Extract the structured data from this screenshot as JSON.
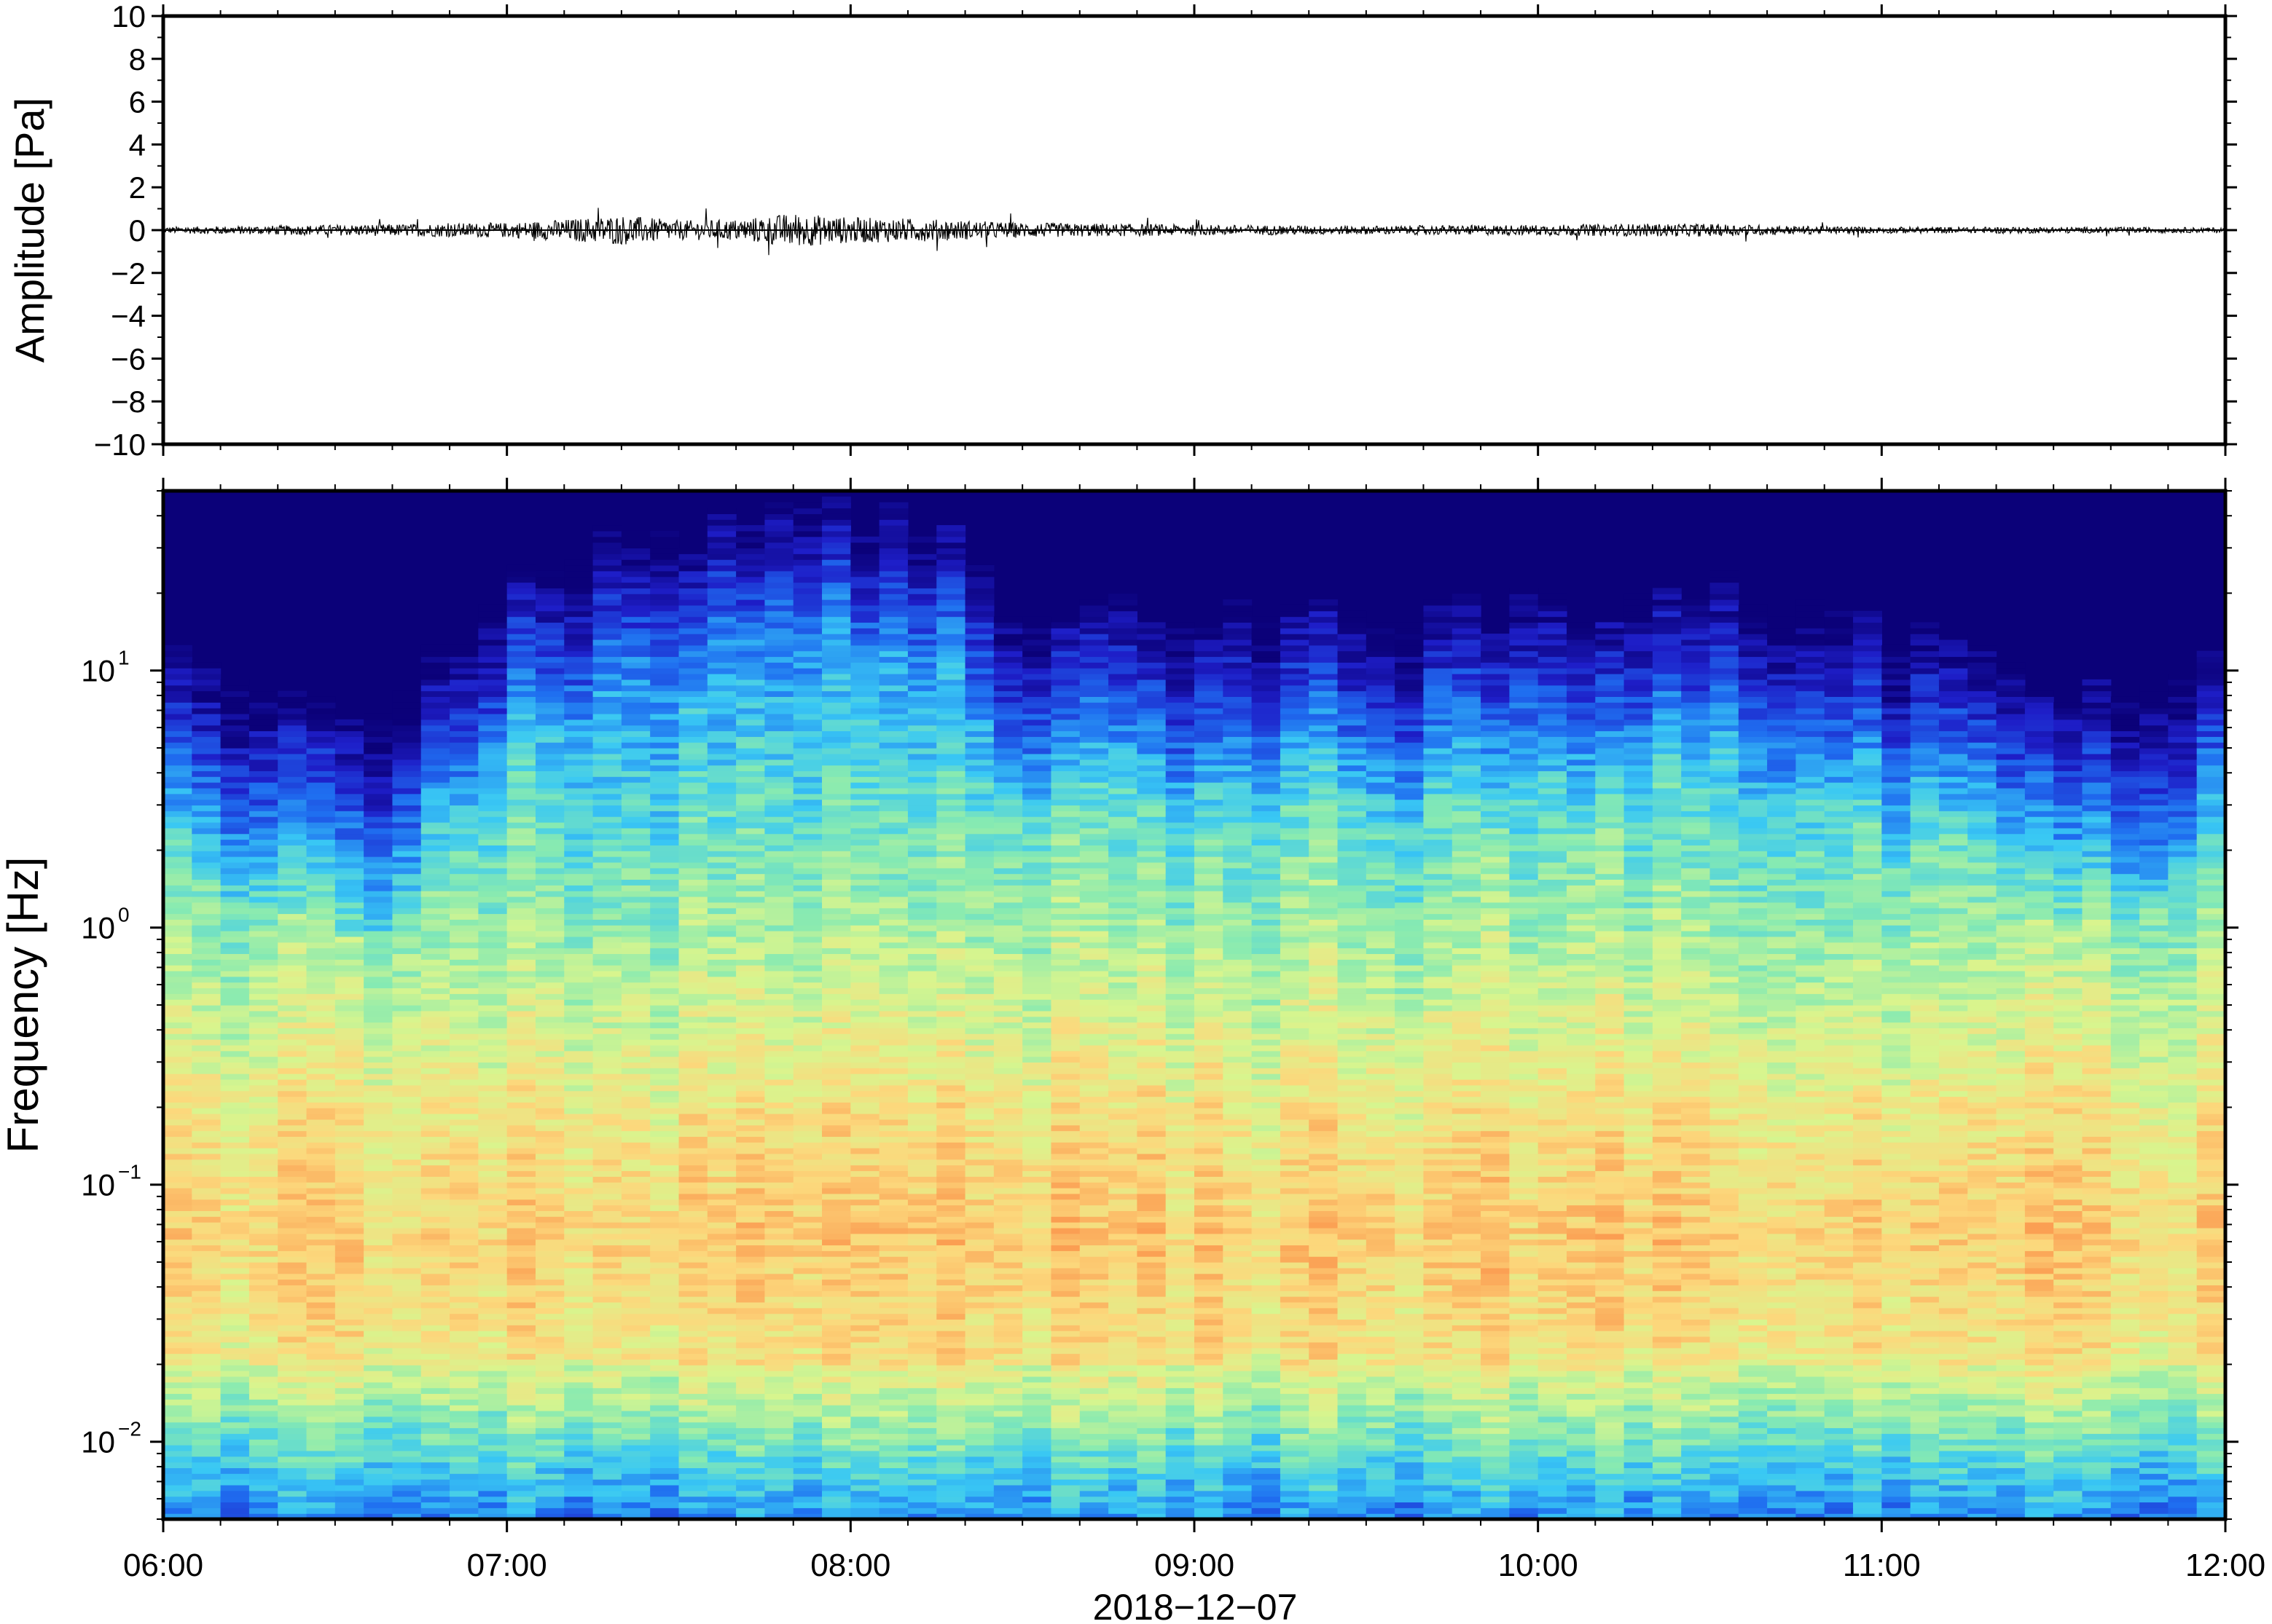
{
  "figure": {
    "date_label": "2018−12−07"
  },
  "chart_data": [
    {
      "type": "line",
      "name": "waveform",
      "ylabel": "Amplitude [Pa]",
      "xlabel": "",
      "xlim": [
        "06:00",
        "12:00"
      ],
      "ylim": [
        -10,
        10
      ],
      "yticks": [
        10,
        8,
        6,
        4,
        2,
        0,
        -2,
        -4,
        -6,
        -8,
        -10
      ],
      "ytick_labels": [
        "10",
        "8",
        "6",
        "4",
        "2",
        "0",
        "−2",
        "−4",
        "−6",
        "−8",
        "−10"
      ],
      "baseline": 0,
      "envelope": {
        "times": [
          "06:00",
          "06:15",
          "06:30",
          "06:45",
          "07:00",
          "07:10",
          "07:20",
          "07:30",
          "07:40",
          "07:50",
          "08:00",
          "08:10",
          "08:20",
          "08:30",
          "08:45",
          "09:00",
          "09:30",
          "10:00",
          "10:20",
          "10:30",
          "10:45",
          "11:00",
          "11:30",
          "12:00"
        ],
        "amplitude": [
          0.15,
          0.2,
          0.25,
          0.3,
          0.35,
          0.5,
          0.7,
          0.45,
          0.5,
          0.8,
          0.6,
          0.55,
          0.45,
          0.35,
          0.3,
          0.25,
          0.2,
          0.25,
          0.3,
          0.3,
          0.2,
          0.15,
          0.15,
          0.12
        ]
      },
      "grid": false
    },
    {
      "type": "heatmap",
      "name": "spectrogram",
      "ylabel": "Frequency [Hz]",
      "xlabel": "2018−12−07",
      "xlim": [
        "06:00",
        "12:00"
      ],
      "xtick_labels": [
        "06:00",
        "07:00",
        "08:00",
        "09:00",
        "10:00",
        "11:00",
        "12:00"
      ],
      "ylim": [
        0.005,
        50
      ],
      "yscale": "log",
      "yticks": [
        0.01,
        0.1,
        1,
        10
      ],
      "ytick_labels": [
        {
          "base": "10",
          "exp": "−2"
        },
        {
          "base": "10",
          "exp": "−1"
        },
        {
          "base": "10",
          "exp": "0"
        },
        {
          "base": "10",
          "exp": "1"
        }
      ],
      "colormap": [
        "#0b0179",
        "#1e1ec8",
        "#1f6ef0",
        "#39c8f4",
        "#86eab2",
        "#d8f58e",
        "#fcd87c",
        "#fb9e52"
      ],
      "activity_profile": {
        "times": [
          "06:00",
          "06:20",
          "06:30",
          "06:45",
          "07:00",
          "07:15",
          "07:30",
          "07:45",
          "07:50",
          "08:00",
          "08:15",
          "08:20",
          "08:30",
          "08:45",
          "09:00",
          "09:15",
          "09:30",
          "09:45",
          "10:00",
          "10:15",
          "10:20",
          "10:30",
          "10:45",
          "11:00",
          "11:15",
          "11:30",
          "11:45",
          "12:00"
        ],
        "upper_edge_hz": [
          8,
          5,
          3.5,
          6,
          12,
          18,
          20,
          22,
          25,
          22,
          20,
          18,
          9,
          11,
          10,
          10,
          9,
          9,
          10,
          9,
          11,
          12,
          9,
          8,
          9,
          5,
          4,
          6
        ]
      },
      "grid": false
    }
  ]
}
